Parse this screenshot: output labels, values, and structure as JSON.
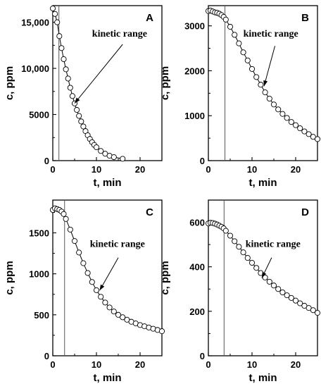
{
  "chart_data": [
    {
      "type": "scatter",
      "panel": "A",
      "xlabel": "t, min",
      "ylabel": "c, ppm",
      "xlim": [
        0,
        25
      ],
      "ylim": [
        0,
        16800
      ],
      "xticks": [
        0,
        10,
        20
      ],
      "yticks": [
        0,
        5000,
        10000,
        15000
      ],
      "ytick_labels": [
        "0",
        "5000",
        "10,000",
        "15,000"
      ],
      "vline_x": 1.4,
      "annotation": "kinetic range",
      "series": [
        {
          "x": [
            0,
            0.5,
            1.0,
            1.5,
            2.0,
            2.5,
            3.0,
            3.5,
            4.0,
            4.5,
            5.0,
            5.5,
            6.0,
            6.5,
            7.0,
            7.5,
            8.0,
            8.5,
            9.0,
            9.5,
            10.0,
            11.0,
            12.0,
            13.0,
            14.0,
            16.0
          ],
          "y": [
            16500,
            15900,
            15000,
            13500,
            12200,
            11000,
            9900,
            8900,
            7900,
            7000,
            6200,
            5500,
            4850,
            4250,
            3700,
            3200,
            2750,
            2350,
            2000,
            1700,
            1450,
            1050,
            750,
            530,
            380,
            200
          ]
        }
      ]
    },
    {
      "type": "scatter",
      "panel": "B",
      "xlabel": "t, min",
      "ylabel": "c, ppm",
      "xlim": [
        0,
        25
      ],
      "ylim": [
        0,
        3450
      ],
      "xticks": [
        0,
        10,
        20
      ],
      "yticks": [
        0,
        1000,
        2000,
        3000
      ],
      "ytick_labels": [
        "0",
        "1000",
        "2000",
        "3000"
      ],
      "vline_x": 3.8,
      "annotation": "kinetic range",
      "series": [
        {
          "x": [
            0,
            0.5,
            1.0,
            1.5,
            2.0,
            2.5,
            3.0,
            3.5,
            4.0,
            5.0,
            6.0,
            7.0,
            8.0,
            9.0,
            10.0,
            11.0,
            12.0,
            13.0,
            14.0,
            15.0,
            16.0,
            17.0,
            18.0,
            19.0,
            20.0,
            21.0,
            22.0,
            23.0,
            24.0,
            25.0
          ],
          "y": [
            3330,
            3340,
            3320,
            3300,
            3290,
            3270,
            3240,
            3200,
            3140,
            2980,
            2800,
            2610,
            2410,
            2230,
            2040,
            1860,
            1690,
            1520,
            1380,
            1250,
            1140,
            1040,
            950,
            860,
            790,
            720,
            650,
            590,
            530,
            480
          ]
        }
      ]
    },
    {
      "type": "scatter",
      "panel": "C",
      "xlabel": "t, min",
      "ylabel": "c, ppm",
      "xlim": [
        0,
        25
      ],
      "ylim": [
        0,
        1900
      ],
      "xticks": [
        0,
        10,
        20
      ],
      "yticks": [
        0,
        500,
        1000,
        1500
      ],
      "ytick_labels": [
        "0",
        "500",
        "1000",
        "1500"
      ],
      "vline_x": 2.7,
      "annotation": "kinetic range",
      "series": [
        {
          "x": [
            0,
            0.5,
            1.0,
            1.5,
            2.0,
            2.5,
            3.0,
            4.0,
            5.0,
            6.0,
            7.0,
            8.0,
            9.0,
            10.0,
            11.0,
            12.0,
            13.0,
            14.0,
            15.0,
            16.0,
            17.0,
            18.0,
            19.0,
            20.0,
            21.0,
            22.0,
            23.0,
            24.0,
            25.0
          ],
          "y": [
            1780,
            1800,
            1790,
            1780,
            1760,
            1730,
            1670,
            1540,
            1400,
            1260,
            1130,
            1010,
            900,
            800,
            720,
            650,
            590,
            540,
            500,
            470,
            440,
            415,
            395,
            375,
            360,
            345,
            330,
            315,
            300
          ]
        }
      ]
    },
    {
      "type": "scatter",
      "panel": "D",
      "xlabel": "t, min",
      "ylabel": "c, ppm",
      "xlim": [
        0,
        25
      ],
      "ylim": [
        0,
        700
      ],
      "xticks": [
        0,
        10,
        20
      ],
      "yticks": [
        0,
        200,
        400,
        600
      ],
      "ytick_labels": [
        "0",
        "200",
        "400",
        "600"
      ],
      "vline_x": 3.6,
      "annotation": "kinetic range",
      "series": [
        {
          "x": [
            0,
            0.5,
            1.0,
            1.5,
            2.0,
            2.5,
            3.0,
            3.5,
            4.0,
            5.0,
            6.0,
            7.0,
            8.0,
            9.0,
            10.0,
            11.0,
            12.0,
            13.0,
            14.0,
            15.0,
            16.0,
            17.0,
            18.0,
            19.0,
            20.0,
            21.0,
            22.0,
            23.0,
            24.0,
            25.0
          ],
          "y": [
            595,
            598,
            597,
            594,
            590,
            585,
            580,
            573,
            562,
            540,
            515,
            490,
            465,
            440,
            418,
            395,
            372,
            352,
            333,
            316,
            300,
            285,
            272,
            260,
            248,
            236,
            225,
            215,
            205,
            193
          ]
        }
      ]
    }
  ]
}
